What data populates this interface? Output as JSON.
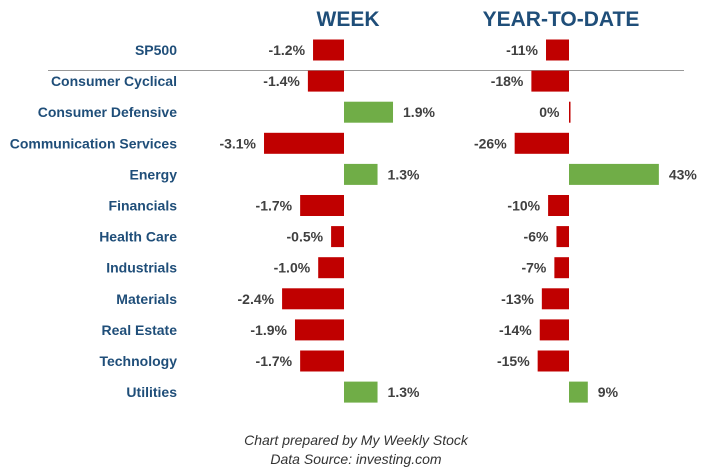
{
  "chart_data": {
    "type": "bar",
    "orientation": "horizontal",
    "categories": [
      "SP500",
      "Consumer Cyclical",
      "Consumer Defensive",
      "Communication Services",
      "Energy",
      "Financials",
      "Health Care",
      "Industrials",
      "Materials",
      "Real Estate",
      "Technology",
      "Utilities"
    ],
    "series": [
      {
        "name": "WEEK",
        "values": [
          -1.2,
          -1.4,
          1.9,
          -3.1,
          1.3,
          -1.7,
          -0.5,
          -1.0,
          -2.4,
          -1.9,
          -1.7,
          1.3
        ],
        "labels": [
          "-1.2%",
          "-1.4%",
          "1.9%",
          "-3.1%",
          "1.3%",
          "-1.7%",
          "-0.5%",
          "-1.0%",
          "-2.4%",
          "-1.9%",
          "-1.7%",
          "1.3%"
        ]
      },
      {
        "name": "YEAR-TO-DATE",
        "values": [
          -11,
          -18,
          0,
          -26,
          43,
          -10,
          -6,
          -7,
          -13,
          -14,
          -15,
          9
        ],
        "labels": [
          "-11%",
          "-18%",
          "0%",
          "-26%",
          "43%",
          "-10%",
          "-6%",
          "-7%",
          "-13%",
          "-14%",
          "-15%",
          "9%"
        ]
      }
    ],
    "colors": {
      "positive": "#70AD47",
      "negative": "#C00000",
      "category_text": "#1F4E79",
      "panel_title": "#1F4E79",
      "value_text": "#404040"
    },
    "separator_after_category": "SP500",
    "grid": false,
    "legend": "none"
  },
  "footer": {
    "line1": "Chart prepared by My Weekly Stock",
    "line2": "Data Source: investing.com"
  }
}
